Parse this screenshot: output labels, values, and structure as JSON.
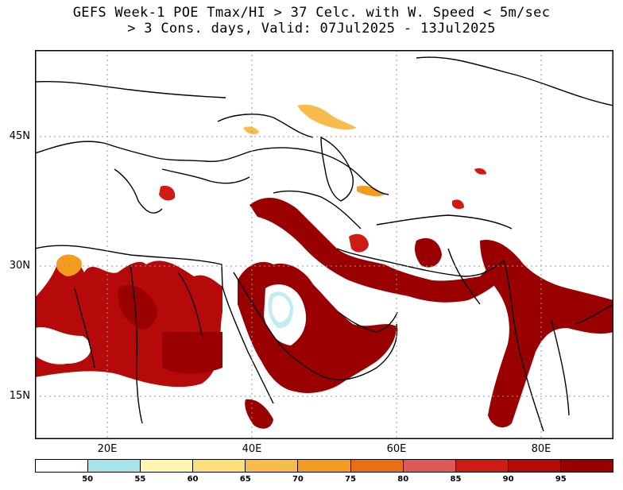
{
  "title": {
    "line1": "GEFS Week-1 POE Tmax/HI > 37 Celc. with W. Speed < 5m/sec",
    "line2": "> 3 Cons. days, Valid: 07Jul2025 - 13Jul2025"
  },
  "axes": {
    "lat_labels": [
      "45N",
      "30N",
      "15N"
    ],
    "lon_labels": [
      "20E",
      "40E",
      "60E",
      "80E"
    ],
    "lat_values": [
      45,
      30,
      15
    ],
    "lon_values": [
      20,
      40,
      60,
      80
    ],
    "lon_range": [
      10,
      90
    ],
    "lat_range": [
      10,
      55
    ],
    "grid": "dotted"
  },
  "colorbar": {
    "colors": [
      "#ffffff",
      "#a8e3ec",
      "#fff6b0",
      "#fde07a",
      "#f7bc4c",
      "#f39c1e",
      "#ec6e12",
      "#df5a57",
      "#cf1b14",
      "#b60a0a",
      "#9a0000"
    ],
    "labels": [
      "50",
      "55",
      "60",
      "65",
      "70",
      "75",
      "80",
      "85",
      "90",
      "95"
    ]
  },
  "colors": {
    "high": "#9a0000",
    "mid": "#cf1b14",
    "orange": "#f39c1e",
    "light_orange": "#f7bc4c",
    "yellow": "#fde07a",
    "cyan": "#a8e3ec"
  }
}
